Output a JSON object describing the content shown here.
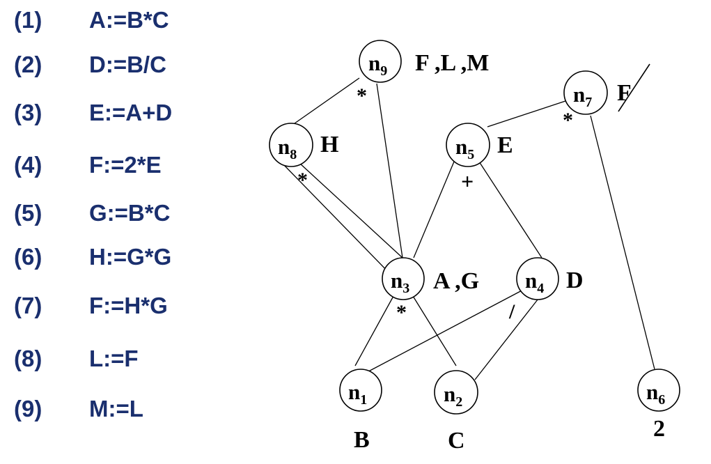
{
  "statements": [
    {
      "num": "(1)",
      "code": "A:=B*C"
    },
    {
      "num": "(2)",
      "code": "D:=B/C"
    },
    {
      "num": "(3)",
      "code": "E:=A+D"
    },
    {
      "num": "(4)",
      "code": "F:=2*E"
    },
    {
      "num": "(5)",
      "code": "G:=B*C"
    },
    {
      "num": "(6)",
      "code": "H:=G*G"
    },
    {
      "num": "(7)",
      "code": "F:=H*G"
    },
    {
      "num": "(8)",
      "code": "L:=F"
    },
    {
      "num": "(9)",
      "code": "M:=L"
    }
  ],
  "dag": {
    "nodes": [
      {
        "id": "n9",
        "base": "n",
        "sub": "9",
        "label": "F ,L ,M",
        "op": "*"
      },
      {
        "id": "n8",
        "base": "n",
        "sub": "8",
        "label": "H",
        "op": "*"
      },
      {
        "id": "n7",
        "base": "n",
        "sub": "7",
        "label": "F",
        "op": "*"
      },
      {
        "id": "n5",
        "base": "n",
        "sub": "5",
        "label": "E",
        "op": "+"
      },
      {
        "id": "n3",
        "base": "n",
        "sub": "3",
        "label": "A ,G",
        "op": "*"
      },
      {
        "id": "n4",
        "base": "n",
        "sub": "4",
        "label": "D",
        "op": "/"
      },
      {
        "id": "n1",
        "base": "n",
        "sub": "1",
        "label": "B",
        "op": ""
      },
      {
        "id": "n2",
        "base": "n",
        "sub": "2",
        "label": "C",
        "op": ""
      },
      {
        "id": "n6",
        "base": "n",
        "sub": "6",
        "label": "2",
        "op": ""
      }
    ],
    "edges": [
      {
        "from": "n9",
        "to": "n8"
      },
      {
        "from": "n9",
        "to": "n3"
      },
      {
        "from": "n8",
        "to": "n3"
      },
      {
        "from": "n8",
        "to": "n3"
      },
      {
        "from": "n7",
        "to": "n5"
      },
      {
        "from": "n7",
        "to": "n6"
      },
      {
        "from": "n5",
        "to": "n3"
      },
      {
        "from": "n5",
        "to": "n4"
      },
      {
        "from": "n3",
        "to": "n1"
      },
      {
        "from": "n3",
        "to": "n2"
      },
      {
        "from": "n4",
        "to": "n1"
      },
      {
        "from": "n4",
        "to": "n2"
      }
    ]
  }
}
